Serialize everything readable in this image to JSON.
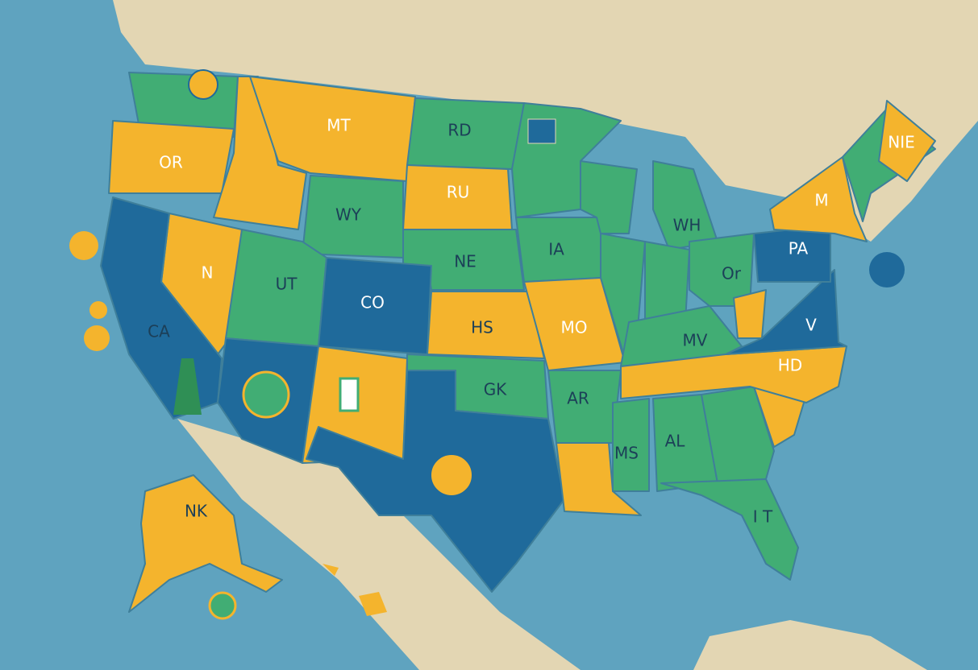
{
  "states": [
    {
      "label": "OR"
    },
    {
      "label": "MT"
    },
    {
      "label": "RD"
    },
    {
      "label": "WY"
    },
    {
      "label": "RU"
    },
    {
      "label": "NE"
    },
    {
      "label": "IA"
    },
    {
      "label": "UT"
    },
    {
      "label": "CO"
    },
    {
      "label": "CA"
    },
    {
      "label": "N"
    },
    {
      "label": "HS"
    },
    {
      "label": "MO"
    },
    {
      "label": "WH"
    },
    {
      "label": "Or"
    },
    {
      "label": "PA"
    },
    {
      "label": "MV"
    },
    {
      "label": "V"
    },
    {
      "label": "GK"
    },
    {
      "label": "AR"
    },
    {
      "label": "HD"
    },
    {
      "label": "MS"
    },
    {
      "label": "AL"
    },
    {
      "label": "NK"
    },
    {
      "label": "I T"
    },
    {
      "label": "NIE"
    },
    {
      "label": "M"
    }
  ]
}
